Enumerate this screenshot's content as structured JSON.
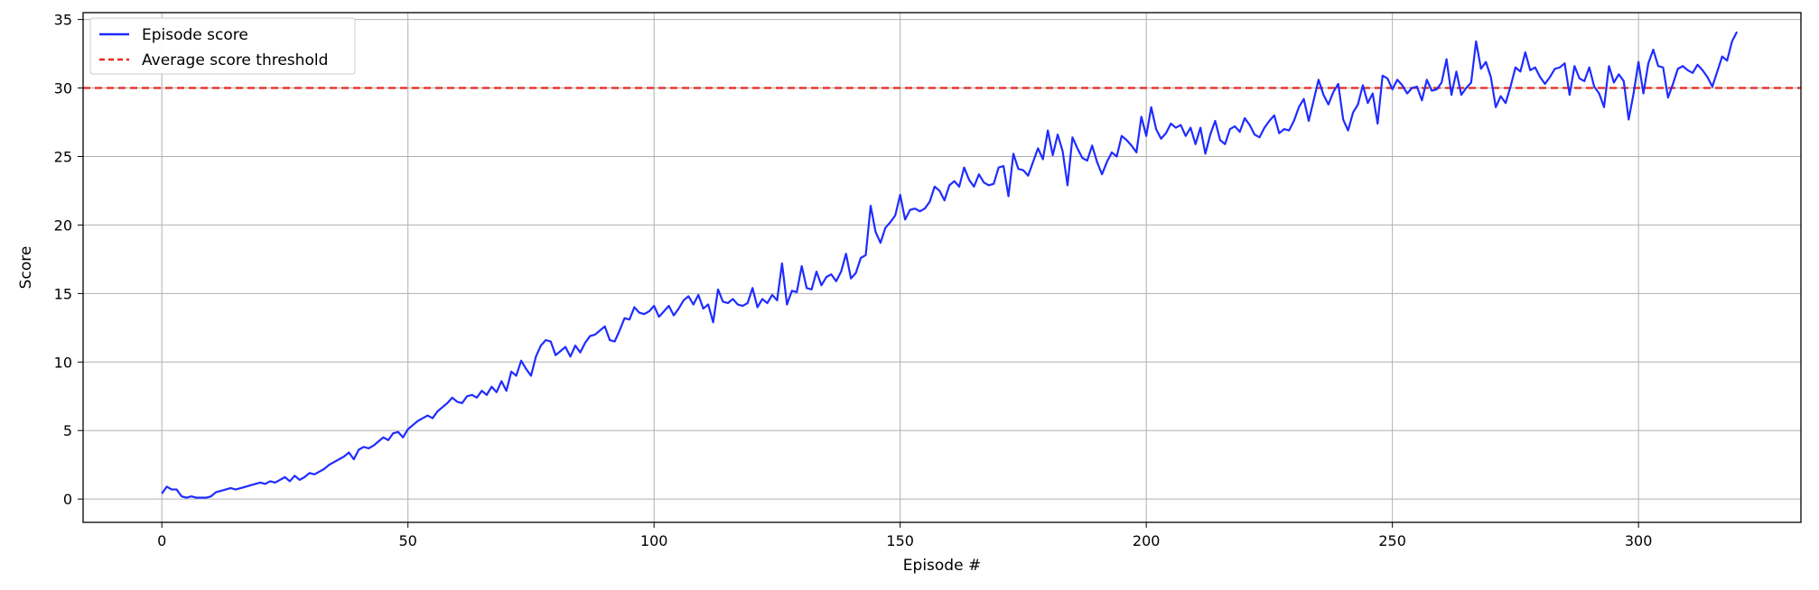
{
  "chart_data": {
    "type": "line",
    "title": "",
    "xlabel": "Episode #",
    "ylabel": "Score",
    "xlim": [
      -16,
      333
    ],
    "ylim": [
      -1.7,
      35.5
    ],
    "xticks": [
      0,
      50,
      100,
      150,
      200,
      250,
      300
    ],
    "yticks": [
      0,
      5,
      10,
      15,
      20,
      25,
      30,
      35
    ],
    "grid": true,
    "legend_position": "top-left",
    "series": [
      {
        "name": "Episode score",
        "color": "#1f2cff",
        "style": "solid",
        "x_start": 0,
        "x_step": 1,
        "values": [
          0.4,
          0.9,
          0.7,
          0.7,
          0.2,
          0.1,
          0.2,
          0.1,
          0.1,
          0.1,
          0.2,
          0.5,
          0.6,
          0.7,
          0.8,
          0.7,
          0.8,
          0.9,
          1.0,
          1.1,
          1.2,
          1.1,
          1.3,
          1.2,
          1.4,
          1.6,
          1.3,
          1.7,
          1.4,
          1.6,
          1.9,
          1.8,
          2.0,
          2.2,
          2.5,
          2.7,
          2.9,
          3.1,
          3.4,
          2.9,
          3.6,
          3.8,
          3.7,
          3.9,
          4.2,
          4.5,
          4.3,
          4.8,
          4.9,
          4.5,
          5.1,
          5.4,
          5.7,
          5.9,
          6.1,
          5.9,
          6.4,
          6.7,
          7.0,
          7.4,
          7.1,
          7.0,
          7.5,
          7.6,
          7.4,
          7.9,
          7.6,
          8.2,
          7.8,
          8.6,
          7.9,
          9.3,
          9.0,
          10.1,
          9.5,
          9.0,
          10.4,
          11.2,
          11.6,
          11.5,
          10.5,
          10.8,
          11.1,
          10.4,
          11.2,
          10.7,
          11.4,
          11.9,
          12.0,
          12.3,
          12.6,
          11.6,
          11.5,
          12.3,
          13.2,
          13.1,
          14.0,
          13.6,
          13.5,
          13.7,
          14.1,
          13.3,
          13.7,
          14.1,
          13.4,
          13.9,
          14.5,
          14.8,
          14.2,
          14.9,
          13.9,
          14.2,
          12.9,
          15.3,
          14.4,
          14.3,
          14.6,
          14.2,
          14.1,
          14.3,
          15.4,
          14.0,
          14.6,
          14.3,
          14.9,
          14.5,
          17.2,
          14.2,
          15.2,
          15.1,
          17.0,
          15.4,
          15.3,
          16.6,
          15.6,
          16.2,
          16.4,
          15.9,
          16.6,
          17.9,
          16.1,
          16.5,
          17.6,
          17.8,
          21.4,
          19.5,
          18.7,
          19.8,
          20.2,
          20.7,
          22.2,
          20.4,
          21.1,
          21.2,
          21.0,
          21.2,
          21.7,
          22.8,
          22.5,
          21.8,
          22.9,
          23.2,
          22.8,
          24.2,
          23.3,
          22.8,
          23.7,
          23.1,
          22.9,
          23.0,
          24.2,
          24.3,
          22.1,
          25.2,
          24.1,
          24.0,
          23.6,
          24.6,
          25.6,
          24.8,
          26.9,
          25.1,
          26.6,
          25.4,
          22.9,
          26.4,
          25.6,
          24.9,
          24.7,
          25.8,
          24.6,
          23.7,
          24.6,
          25.3,
          25.0,
          26.5,
          26.2,
          25.8,
          25.3,
          27.9,
          26.5,
          28.6,
          27.0,
          26.3,
          26.7,
          27.4,
          27.1,
          27.3,
          26.5,
          27.1,
          25.9,
          27.1,
          25.2,
          26.6,
          27.6,
          26.2,
          25.9,
          27.0,
          27.2,
          26.8,
          27.8,
          27.3,
          26.6,
          26.4,
          27.1,
          27.6,
          28.0,
          26.7,
          27.0,
          26.9,
          27.6,
          28.6,
          29.2,
          27.6,
          29.1,
          30.6,
          29.5,
          28.8,
          29.7,
          30.3,
          27.7,
          26.9,
          28.2,
          28.8,
          30.2,
          28.9,
          29.6,
          27.4,
          30.9,
          30.7,
          29.9,
          30.6,
          30.2,
          29.6,
          30.0,
          30.1,
          29.1,
          30.6,
          29.8,
          29.9,
          30.4,
          32.1,
          29.5,
          31.2,
          29.5,
          30.0,
          30.4,
          33.4,
          31.4,
          31.9,
          30.8,
          28.6,
          29.4,
          28.9,
          30.1,
          31.5,
          31.2,
          32.6,
          31.3,
          31.5,
          30.8,
          30.3,
          30.8,
          31.4,
          31.5,
          31.8,
          29.5,
          31.6,
          30.7,
          30.5,
          31.5,
          30.1,
          29.6,
          28.6,
          31.6,
          30.4,
          31.0,
          30.5,
          27.7,
          29.6,
          31.9,
          29.6,
          31.8,
          32.8,
          31.6,
          31.5,
          29.3,
          30.3,
          31.4,
          31.6,
          31.3,
          31.1,
          31.7,
          31.3,
          30.8,
          30.1,
          31.2,
          32.3,
          32.0,
          33.4,
          34.1
        ]
      },
      {
        "name": "Average score threshold",
        "color": "#e8281e",
        "style": "dashed",
        "y_constant": 30
      }
    ]
  }
}
